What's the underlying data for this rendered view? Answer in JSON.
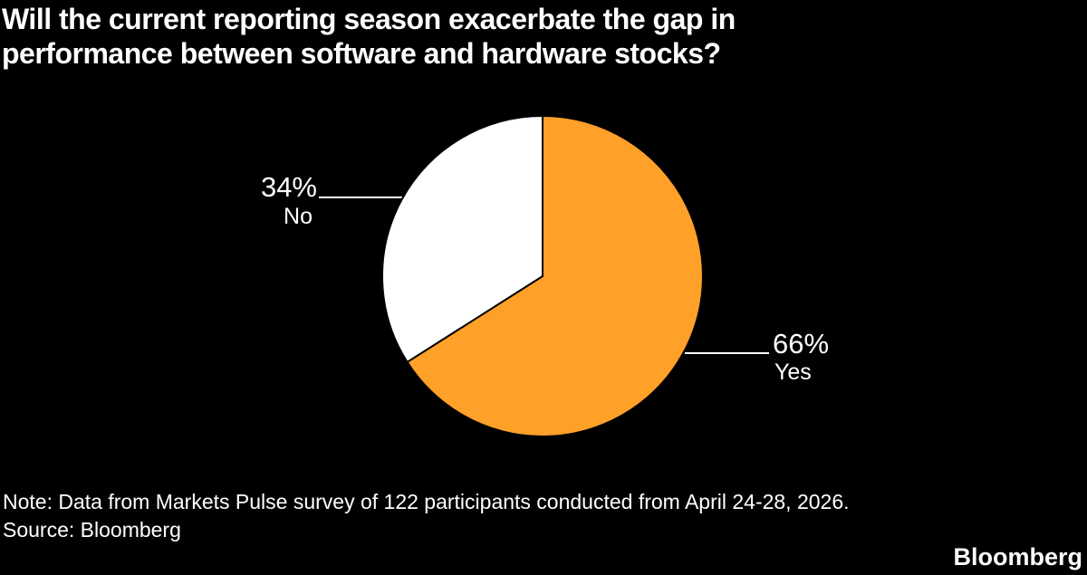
{
  "title": {
    "lines": [
      "Will the current reporting season exacerbate the gap in",
      "performance between software and hardware stocks?"
    ],
    "full": "Will the current reporting season exacerbate the gap in performance between software and hardware stocks?"
  },
  "chart_data": {
    "type": "pie",
    "title": "Will the current reporting season exacerbate the gap in performance between software and hardware stocks?",
    "categories": [
      "Yes",
      "No"
    ],
    "values": [
      66,
      34
    ],
    "unit": "%",
    "start_angle": "12 o'clock",
    "direction": "clockwise",
    "background_color": "#000000",
    "slice_stroke_color": "#000000",
    "leader_line_color": "#FFFFFF",
    "slices": [
      {
        "label": "Yes",
        "value": 66,
        "pct_label": "66%",
        "color": "#FFA028"
      },
      {
        "label": "No",
        "value": 34,
        "pct_label": "34%",
        "color": "#FFFFFF"
      }
    ]
  },
  "footer": {
    "note": "Note: Data from Markets Pulse survey of 122 participants conducted from April 24-28, 2026.",
    "source": "Source: Bloomberg",
    "brand": "Bloomberg"
  },
  "colors": {
    "background": "#000000",
    "text": "#FFFFFF",
    "yes_slice": "#FFA028",
    "no_slice": "#FFFFFF"
  }
}
